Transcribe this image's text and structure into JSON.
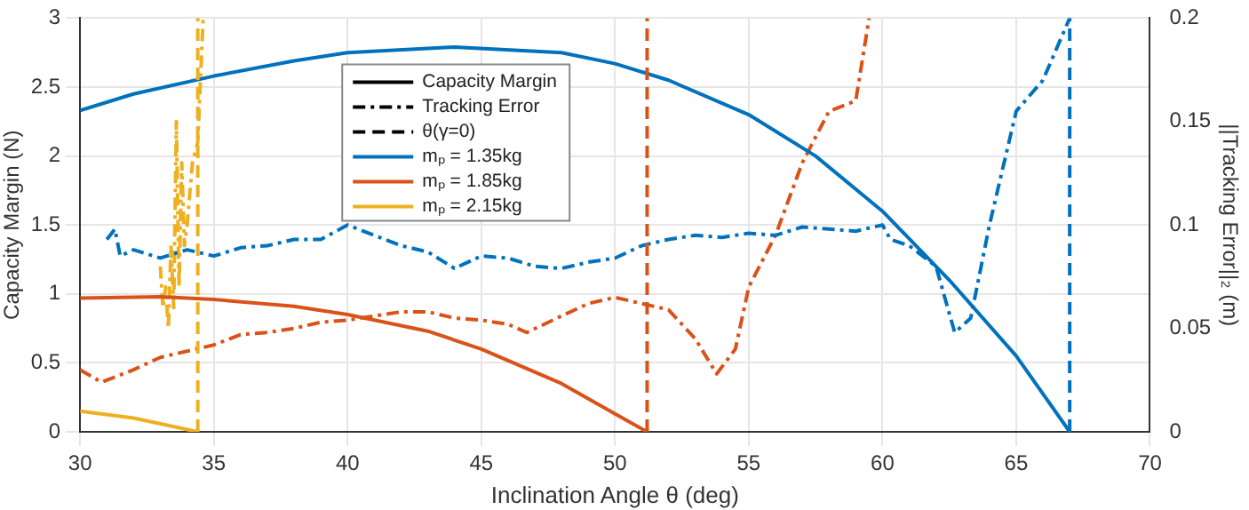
{
  "chart_data": {
    "type": "line",
    "xlabel": "Inclination Angle θ (deg)",
    "ylabel": "Capacity Margin (N)",
    "y2label": "||Tracking Error||₂ (m)",
    "xlim": [
      30,
      70
    ],
    "xticks": [
      30,
      35,
      40,
      45,
      50,
      55,
      60,
      65,
      70
    ],
    "ylim": [
      0,
      3
    ],
    "yticks": [
      0,
      0.5,
      1,
      1.5,
      2,
      2.5,
      3
    ],
    "y2lim": [
      0,
      0.2
    ],
    "y2ticks": [
      0,
      0.05,
      0.1,
      0.15,
      0.2
    ],
    "grid": true,
    "legend": "top",
    "marker": "none",
    "series": [
      {
        "name": "Capacity Margin",
        "color": "#000000",
        "line_style": "solid"
      },
      {
        "name": "Tracking Error",
        "color": "#000000",
        "line_style": "dashdot"
      },
      {
        "name": "θ(γ=0)",
        "color": "#000000",
        "line_style": "dashed"
      },
      {
        "name": "mₚ = 1.35kg",
        "color": "#0072bd",
        "line_style": "solid",
        "x": [
          30,
          32,
          35,
          38,
          40,
          44,
          48,
          50,
          52,
          55,
          57.5,
          60,
          62.5,
          65,
          67
        ],
        "values": [
          2.33,
          2.45,
          2.58,
          2.69,
          2.75,
          2.79,
          2.75,
          2.67,
          2.55,
          2.3,
          2.0,
          1.6,
          1.1,
          0.55,
          0
        ]
      },
      {
        "name": "mₚ = 1.85kg",
        "color": "#d95319",
        "line_style": "solid",
        "x": [
          30,
          33,
          35,
          38,
          40,
          43,
          45,
          48,
          50,
          51.2
        ],
        "values": [
          0.97,
          0.98,
          0.96,
          0.91,
          0.85,
          0.73,
          0.6,
          0.35,
          0.13,
          0
        ]
      },
      {
        "name": "mₚ = 2.15kg",
        "color": "#edb120",
        "line_style": "solid",
        "x": [
          30,
          32,
          34.4
        ],
        "values": [
          0.15,
          0.1,
          0
        ]
      },
      {
        "color": "#0072bd",
        "line_style": "dashdot",
        "axis": "y2",
        "x": [
          31,
          31.3,
          31.5,
          32,
          33,
          34,
          35,
          36,
          37,
          38,
          39,
          40,
          41,
          42,
          43,
          44,
          45,
          46,
          47,
          48,
          49,
          50,
          51,
          52,
          53,
          54,
          55,
          56,
          57,
          58,
          59,
          60,
          60.3,
          61,
          62,
          62.7,
          63.3,
          64,
          65,
          66,
          67
        ],
        "values": [
          0.093,
          0.098,
          0.085,
          0.088,
          0.084,
          0.088,
          0.085,
          0.089,
          0.09,
          0.093,
          0.093,
          0.1,
          0.095,
          0.09,
          0.087,
          0.079,
          0.085,
          0.084,
          0.08,
          0.079,
          0.082,
          0.084,
          0.09,
          0.093,
          0.095,
          0.094,
          0.096,
          0.095,
          0.099,
          0.098,
          0.097,
          0.1,
          0.093,
          0.09,
          0.08,
          0.048,
          0.055,
          0.1,
          0.155,
          0.17,
          0.2
        ]
      },
      {
        "color": "#d95319",
        "line_style": "dashdot",
        "axis": "y2",
        "x": [
          30,
          30.8,
          32,
          33,
          35,
          36,
          37,
          38,
          39,
          40,
          41,
          42,
          43,
          44,
          45,
          46,
          46.7,
          48,
          49,
          50,
          51,
          52,
          53,
          53.8,
          54.5,
          55,
          56,
          57,
          58,
          59,
          59.5
        ],
        "values": [
          0.03,
          0.024,
          0.03,
          0.036,
          0.042,
          0.047,
          0.048,
          0.05,
          0.053,
          0.054,
          0.056,
          0.058,
          0.058,
          0.055,
          0.054,
          0.052,
          0.048,
          0.056,
          0.062,
          0.065,
          0.062,
          0.059,
          0.045,
          0.028,
          0.04,
          0.07,
          0.095,
          0.13,
          0.155,
          0.16,
          0.2
        ]
      },
      {
        "color": "#edb120",
        "line_style": "dashdot",
        "axis": "y2",
        "x": [
          33,
          33.1,
          33.2,
          33.3,
          33.4,
          33.5,
          33.6,
          33.7,
          33.8,
          33.9,
          34,
          34.2,
          34.4,
          34.6
        ],
        "values": [
          0.08,
          0.06,
          0.07,
          0.05,
          0.09,
          0.06,
          0.15,
          0.07,
          0.13,
          0.09,
          0.1,
          0.13,
          0.14,
          0.2
        ]
      }
    ],
    "ref_lines": [
      {
        "axis": "x",
        "value": 67,
        "color": "#0072bd",
        "line_style": "dashed"
      },
      {
        "axis": "x",
        "value": 51.2,
        "color": "#d95319",
        "line_style": "dashed"
      },
      {
        "axis": "x",
        "value": 34.4,
        "color": "#edb120",
        "line_style": "dashed"
      }
    ]
  }
}
